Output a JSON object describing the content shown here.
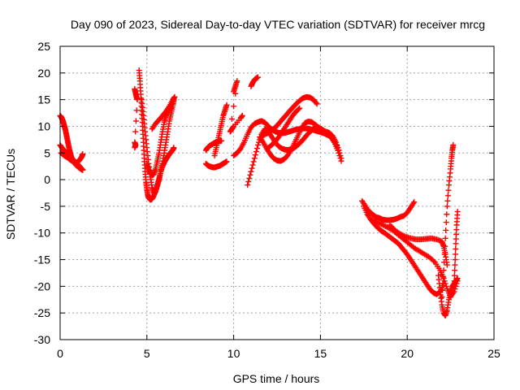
{
  "chart_data": {
    "type": "scatter",
    "title": "Day 090 of 2023, Sidereal Day-to-day VTEC variation (SDTVAR) for receiver mrcg",
    "xlabel": "GPS time / hours",
    "ylabel": "SDTVAR / TECUs",
    "xlim": [
      0,
      25
    ],
    "ylim": [
      -30,
      25
    ],
    "x_ticks": [
      0,
      5,
      10,
      15,
      20,
      25
    ],
    "y_ticks": [
      -30,
      -25,
      -20,
      -15,
      -10,
      -5,
      0,
      5,
      10,
      15,
      20,
      25
    ],
    "grid": true,
    "legend": "none",
    "marker": "+",
    "color": "#ff0000",
    "series": [
      {
        "x": [
          0.0,
          0.05,
          0.1,
          0.15,
          0.2,
          0.25,
          0.3,
          0.35,
          0.4,
          0.45,
          0.5,
          0.55,
          0.6,
          0.65,
          0.7,
          0.8,
          0.9,
          1.0,
          1.1,
          1.2,
          1.3
        ],
        "y": [
          12,
          11.8,
          11.5,
          11.1,
          10.6,
          10,
          9.4,
          8.6,
          7.8,
          7,
          6.2,
          5.4,
          4.8,
          4.2,
          3.8,
          3.2,
          2.8,
          2.5,
          2.2,
          2,
          1.8
        ]
      },
      {
        "x": [
          0.0,
          0.1,
          0.2,
          0.3,
          0.4,
          0.5,
          0.6,
          0.7,
          0.8,
          0.9,
          1.0,
          1.1,
          1.2,
          1.3
        ],
        "y": [
          6.5,
          6,
          5.6,
          5.2,
          4.8,
          4.5,
          4.2,
          3.9,
          3.6,
          3.2,
          2.9,
          2.6,
          2.2,
          1.8
        ]
      },
      {
        "x": [
          0.05,
          0.15,
          0.25,
          0.35,
          0.45,
          0.55,
          0.65,
          0.75,
          0.85,
          0.95,
          1.05,
          1.15,
          1.25,
          1.3
        ],
        "y": [
          5,
          4.8,
          4.5,
          4.3,
          4.1,
          3.8,
          3.6,
          3.5,
          3.3,
          3.2,
          3.4,
          3.8,
          4.3,
          4.8
        ]
      },
      {
        "x": [
          4.55,
          4.6,
          4.65,
          4.7,
          4.75,
          4.8,
          4.85,
          4.9,
          4.95,
          5.0,
          5.05,
          5.1,
          5.2,
          5.3,
          5.4,
          5.5,
          5.6,
          5.7,
          5.8,
          5.9,
          6.0,
          6.1,
          6.2,
          6.3,
          6.4,
          6.5,
          6.55
        ],
        "y": [
          20.5,
          18.5,
          16,
          13,
          10,
          7,
          4,
          1.5,
          -0.5,
          -1.8,
          -2.8,
          -3.4,
          -3.8,
          -3.6,
          -3,
          -2.2,
          -1,
          0.2,
          1.5,
          2.5,
          3.2,
          3.8,
          4.3,
          4.8,
          5.2,
          5.6,
          6
        ]
      },
      {
        "x": [
          4.7,
          4.8,
          4.9,
          5.0,
          5.1,
          5.2,
          5.3,
          5.4,
          5.5,
          5.6,
          5.7,
          5.8,
          5.9,
          6.0,
          6.1,
          6.2,
          6.3,
          6.4,
          6.5,
          6.55
        ],
        "y": [
          15,
          12,
          9,
          6,
          3,
          0.5,
          -1.5,
          -2.5,
          -2.2,
          -1.2,
          0,
          1.5,
          3,
          5,
          7,
          9,
          11,
          12.5,
          14,
          15
        ]
      },
      {
        "x": [
          5.0,
          5.1,
          5.2,
          5.3,
          5.4,
          5.5,
          5.6,
          5.7,
          5.8,
          5.9,
          6.0,
          6.1,
          6.2,
          6.3,
          6.4
        ],
        "y": [
          3,
          2,
          1.2,
          0.8,
          1,
          2,
          3.5,
          5,
          7,
          9,
          10.8,
          12,
          12.8,
          13.2,
          13.5
        ]
      },
      {
        "x": [
          5.3,
          5.5,
          5.7,
          5.9,
          6.1,
          6.3,
          6.5,
          6.6
        ],
        "y": [
          9.5,
          10.5,
          11.2,
          12,
          12.8,
          13.8,
          15,
          15.5
        ]
      },
      {
        "x": [
          4.3,
          4.35,
          4.4,
          4.45,
          4.3,
          4.35,
          4.3
        ],
        "y": [
          17,
          16.2,
          15.5,
          15,
          7,
          6.5,
          6
        ]
      },
      {
        "x": [
          8.4,
          8.5,
          8.6,
          8.7,
          8.8,
          8.9,
          9.0,
          9.1,
          9.2,
          9.3,
          9.4,
          9.5,
          9.6
        ],
        "y": [
          3,
          2.7,
          2.5,
          2.4,
          2.3,
          2.3,
          2.4,
          2.5,
          2.6,
          2.8,
          3,
          3.2,
          3.4
        ]
      },
      {
        "x": [
          8.4,
          8.5,
          8.6,
          8.7,
          8.8,
          8.9,
          9.0,
          9.1,
          9.2,
          9.3
        ],
        "y": [
          5.5,
          6,
          6.3,
          6.5,
          6.7,
          6.9,
          7,
          7.1,
          7.2,
          7.3
        ]
      },
      {
        "x": [
          8.9,
          9.0,
          9.1,
          9.2,
          9.3,
          9.4,
          9.5,
          9.6
        ],
        "y": [
          4.5,
          6,
          7.5,
          9,
          10.5,
          12,
          13,
          14
        ]
      },
      {
        "x": [
          10.0,
          10.1,
          10.2,
          9.8,
          9.9,
          10.0,
          10.4,
          10.5
        ],
        "y": [
          16.5,
          17.5,
          18.5,
          9,
          9.5,
          10,
          11.5,
          12
        ]
      },
      {
        "x": [
          10.0,
          10.2,
          10.4,
          10.6,
          10.8,
          11.0,
          11.2,
          11.4,
          11.6,
          11.8,
          12.0,
          12.2,
          12.4,
          12.6,
          12.8,
          13.0,
          13.2,
          13.4,
          13.6,
          13.8,
          14.0,
          14.2,
          14.4,
          14.6,
          14.8,
          15.0,
          15.2,
          15.4,
          15.6,
          15.8,
          16.0,
          16.2
        ],
        "y": [
          4.5,
          5,
          5.8,
          7,
          8.5,
          9.8,
          10.5,
          10.8,
          11,
          10.7,
          10,
          9.4,
          9,
          8.8,
          8.7,
          8.8,
          9,
          9.2,
          9.4,
          9.5,
          9.6,
          9.6,
          9.5,
          9.3,
          9.1,
          8.9,
          8.7,
          8.4,
          8,
          7.2,
          6,
          4
        ]
      },
      {
        "x": [
          10.8,
          11.0,
          11.2,
          11.4,
          11.6,
          11.8,
          12.0,
          12.2,
          12.4,
          12.6,
          12.8,
          13.0,
          13.2,
          13.4,
          13.6,
          13.8,
          14.0,
          14.2,
          14.4,
          14.6,
          14.8,
          15.0,
          15.2,
          15.4,
          15.6,
          15.8,
          16.0,
          16.2
        ],
        "y": [
          -1,
          1.5,
          4,
          6.5,
          8.5,
          9.5,
          9,
          8,
          7,
          6.2,
          5.8,
          5.6,
          5.6,
          5.8,
          6.2,
          6.8,
          7.5,
          8.3,
          9,
          9.5,
          9.6,
          9.4,
          9,
          8.6,
          8,
          7,
          5.5,
          3.5
        ]
      },
      {
        "x": [
          11.0,
          11.1,
          11.2,
          11.3,
          11.4
        ],
        "y": [
          17.5,
          18.2,
          18.7,
          19,
          19.2
        ]
      },
      {
        "x": [
          11.5,
          11.7,
          11.9,
          12.1,
          12.3,
          12.5,
          12.7,
          12.9,
          13.1,
          13.3,
          13.5,
          13.7,
          13.9,
          14.1,
          14.3,
          14.5,
          14.7,
          14.9,
          15.1,
          15.3,
          15.5,
          15.7,
          15.9,
          16.1
        ],
        "y": [
          8,
          7,
          5.8,
          4.8,
          4,
          3.6,
          3.5,
          3.8,
          4.5,
          5.5,
          6.8,
          8.2,
          9.6,
          10.6,
          10.9,
          10.8,
          10.3,
          9.8,
          9.4,
          9,
          8.8,
          8.2,
          7,
          5
        ]
      },
      {
        "x": [
          11.6,
          11.8,
          12.0,
          12.2,
          12.4,
          12.6,
          12.8,
          13.0,
          13.2,
          13.4,
          13.6,
          13.8,
          14.0,
          14.2,
          14.4,
          14.6,
          14.8
        ],
        "y": [
          8,
          8.5,
          8.8,
          9.2,
          9.8,
          10.5,
          11.3,
          12,
          12.8,
          13.5,
          14.2,
          14.8,
          15.3,
          15.5,
          15.4,
          15,
          14.2
        ]
      },
      {
        "x": [
          12.0,
          12.2,
          12.4,
          12.6,
          12.8,
          13.0,
          13.2,
          13.4,
          13.6,
          13.8
        ],
        "y": [
          6,
          6.5,
          7.2,
          8,
          9,
          10,
          11,
          12,
          12.8,
          13.4
        ]
      },
      {
        "x": [
          17.4,
          17.6,
          17.8,
          18.0,
          18.2,
          18.4,
          18.6,
          18.8,
          19.0,
          19.2,
          19.4,
          19.6,
          19.8,
          20.0,
          20.2,
          20.4
        ],
        "y": [
          -4,
          -5,
          -6,
          -6.5,
          -7,
          -7.2,
          -7.5,
          -7.6,
          -7.6,
          -7.5,
          -7.3,
          -7,
          -6.8,
          -6.2,
          -5.2,
          -4.2
        ]
      },
      {
        "x": [
          17.5,
          17.7,
          17.9,
          18.1,
          18.3,
          18.5,
          18.7,
          18.9,
          19.1,
          19.3,
          19.5,
          19.7,
          19.9,
          20.1,
          20.3,
          20.5,
          20.7,
          20.9,
          21.1,
          21.3,
          21.5,
          21.7,
          21.9,
          22.1
        ],
        "y": [
          -5,
          -6.5,
          -7.5,
          -8.3,
          -9,
          -9.6,
          -10,
          -10.5,
          -11,
          -11.5,
          -12,
          -12.8,
          -13.6,
          -14.5,
          -15.5,
          -16.5,
          -17.5,
          -18.5,
          -19.5,
          -20.5,
          -21.2,
          -21.5,
          -21,
          -19.5
        ]
      },
      {
        "x": [
          18.0,
          18.3,
          18.6,
          18.9,
          19.2,
          19.5,
          19.8,
          20.1,
          20.4,
          20.7,
          21.0,
          21.3,
          21.6,
          21.9,
          22.1,
          22.3,
          22.5,
          22.7,
          22.9
        ],
        "y": [
          -7.5,
          -8,
          -8.5,
          -9,
          -9.6,
          -10.4,
          -11.2,
          -12,
          -12.8,
          -13.4,
          -14,
          -14.6,
          -15.5,
          -17,
          -18.5,
          -20.5,
          -22,
          -21,
          -19
        ]
      },
      {
        "x": [
          19.0,
          19.3,
          19.6,
          19.9,
          20.2,
          20.5,
          20.8,
          21.1,
          21.4,
          21.7,
          22.0,
          22.1,
          22.2,
          22.3
        ],
        "y": [
          -8.5,
          -9.5,
          -10.2,
          -10.7,
          -11,
          -11.2,
          -11.2,
          -11.1,
          -11,
          -11.2,
          -11.6,
          -12.5,
          -14,
          -16
        ]
      },
      {
        "x": [
          21.8,
          21.9,
          22.0,
          22.1,
          22.2,
          22.3,
          22.4,
          22.5,
          22.6,
          22.7,
          22.8,
          22.9
        ],
        "y": [
          -18,
          -21,
          -23.5,
          -25,
          -25.5,
          -24.5,
          -22.5,
          -21,
          -20,
          -19.5,
          -19,
          -18.5
        ]
      },
      {
        "x": [
          22.0,
          22.1,
          22.2,
          22.3,
          22.4,
          22.5,
          22.55,
          22.6,
          22.65
        ],
        "y": [
          -22,
          -17,
          -11,
          -5,
          -1,
          2,
          4,
          5.5,
          6.5
        ]
      },
      {
        "x": [
          22.7,
          22.75,
          22.8,
          22.85,
          22.9
        ],
        "y": [
          -20,
          -16,
          -12,
          -8.5,
          -6
        ]
      }
    ]
  }
}
